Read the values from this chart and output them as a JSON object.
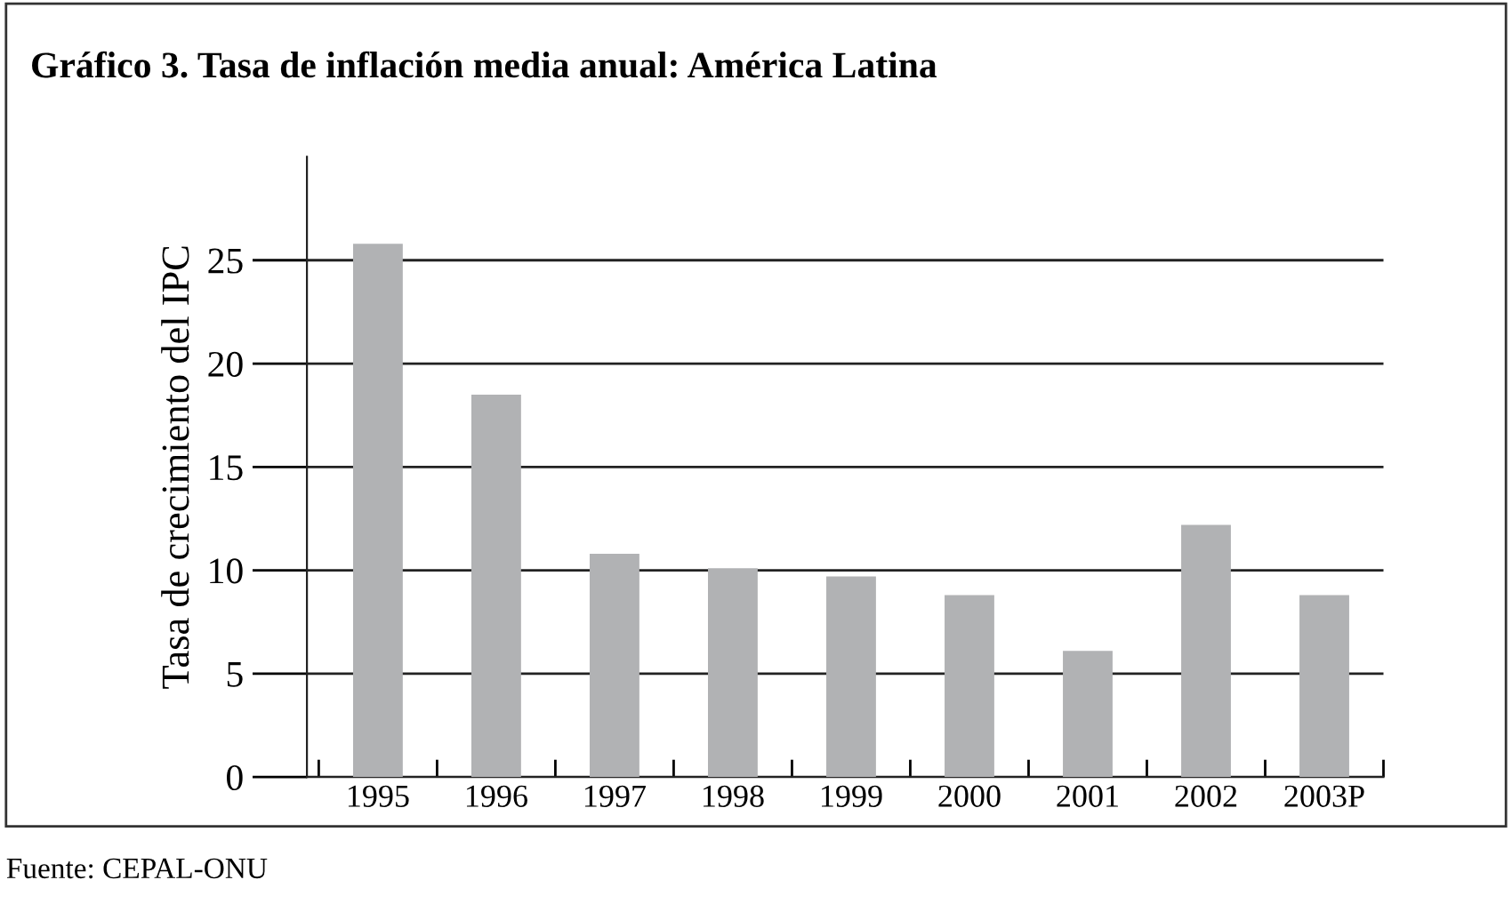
{
  "chart_data": {
    "type": "bar",
    "title": "Gráfico 3. Tasa de inflación media anual: América Latina",
    "ylabel": "Tasa de crecimiento del IPC",
    "categories": [
      "1995",
      "1996",
      "1997",
      "1998",
      "1999",
      "2000",
      "2001",
      "2002",
      "2003P"
    ],
    "values": [
      25.8,
      18.5,
      10.8,
      10.1,
      9.7,
      8.8,
      6.1,
      12.2,
      8.8
    ],
    "color": "#b1b2b4",
    "ylim": [
      0,
      30
    ],
    "yticks": [
      0,
      5,
      10,
      15,
      20,
      25
    ],
    "grid": "y",
    "legend": false,
    "annotations": [
      "Fuente: CEPAL-ONU"
    ]
  }
}
